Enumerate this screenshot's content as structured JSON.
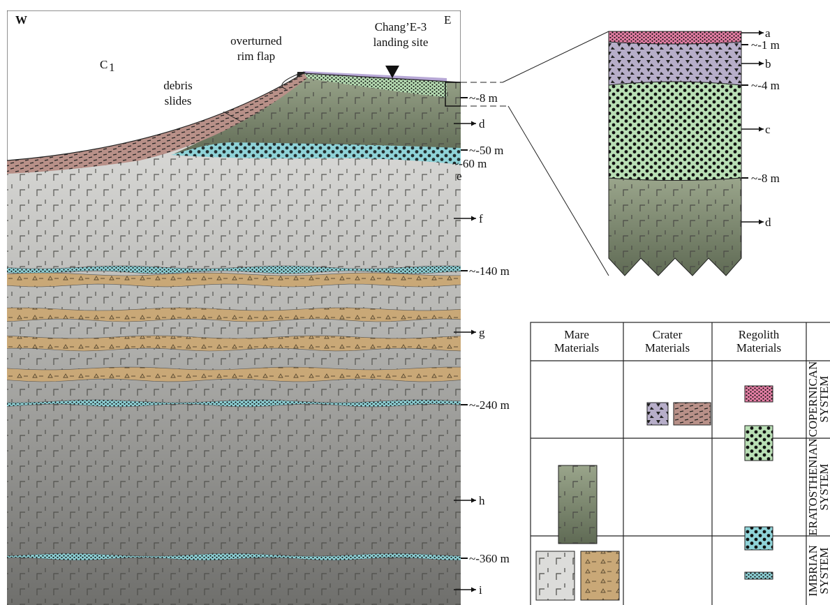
{
  "main_section": {
    "west": "W",
    "east": "E",
    "crater": {
      "text": "C",
      "subscript": "1"
    },
    "rim_flap": [
      "overturned",
      "rim flap"
    ],
    "debris": [
      "debris",
      "slides"
    ],
    "landing_site": [
      "Chang’E-3",
      "landing site"
    ],
    "depths": [
      "~-8 m",
      "~-50 m",
      "~-60 m",
      "~-140 m",
      "~-240 m",
      "~-360 m"
    ],
    "units": [
      "d",
      "e",
      "f",
      "g",
      "h",
      "i"
    ]
  },
  "inset": {
    "units": [
      "a",
      "b",
      "c",
      "d"
    ],
    "depths": [
      "~-1 m",
      "~-4 m",
      "~-8 m"
    ]
  },
  "legend": {
    "headers": [
      [
        "Mare",
        "Materials"
      ],
      [
        "Crater",
        "Materials"
      ],
      [
        "Regolith",
        "Materials"
      ]
    ],
    "systems": [
      [
        "COPERNICAN",
        "SYSTEM"
      ],
      [
        "ERATOSTHENIAN",
        "SYSTEM"
      ],
      [
        "IMBRIAN",
        "SYSTEM"
      ]
    ]
  }
}
